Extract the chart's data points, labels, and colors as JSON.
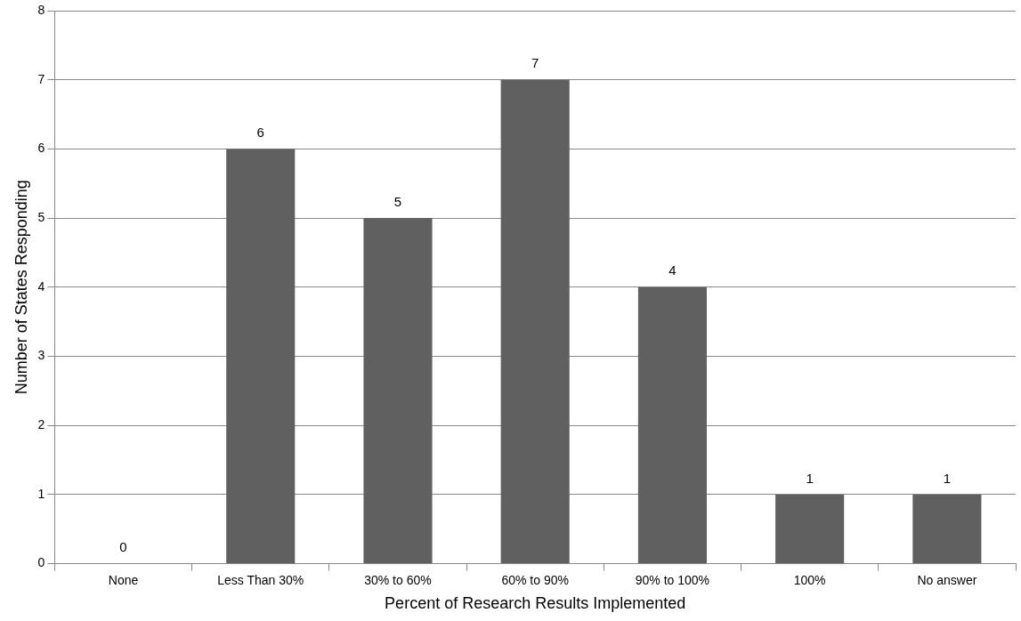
{
  "chart_data": {
    "type": "bar",
    "xlabel": "Percent of Research Results Implemented",
    "ylabel": "Number of States Responding",
    "categories": [
      "None",
      "Less Than 30%",
      "30% to 60%",
      "60% to 90%",
      "90% to 100%",
      "100%",
      "No answer"
    ],
    "values": [
      0,
      6,
      5,
      7,
      4,
      1,
      1
    ],
    "color": "#606060",
    "ylim": [
      0,
      8
    ],
    "yticks": [
      0,
      1,
      2,
      3,
      4,
      5,
      6,
      7,
      8
    ],
    "grid": "y",
    "data_labels": true,
    "legend": false
  }
}
